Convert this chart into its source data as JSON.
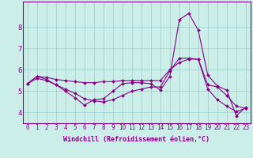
{
  "bg_color": "#cceee8",
  "line_color": "#880088",
  "grid_color": "#99cccc",
  "xlabel": "Windchill (Refroidissement éolien,°C)",
  "xlim": [
    -0.5,
    23.5
  ],
  "ylim": [
    3.5,
    9.2
  ],
  "yticks": [
    4,
    5,
    6,
    7,
    8
  ],
  "xticks": [
    0,
    1,
    2,
    3,
    4,
    5,
    6,
    7,
    8,
    9,
    10,
    11,
    12,
    13,
    14,
    15,
    16,
    17,
    18,
    19,
    20,
    21,
    22,
    23
  ],
  "line1_x": [
    0,
    1,
    2,
    3,
    4,
    5,
    6,
    7,
    8,
    9,
    10,
    11,
    12,
    13,
    14,
    15,
    16,
    17,
    18,
    19,
    20,
    21,
    22,
    23
  ],
  "line1_y": [
    5.35,
    5.7,
    5.65,
    5.55,
    5.5,
    5.45,
    5.4,
    5.4,
    5.45,
    5.45,
    5.5,
    5.5,
    5.5,
    5.5,
    5.5,
    6.0,
    6.35,
    6.5,
    6.5,
    5.3,
    5.2,
    4.8,
    4.3,
    4.2
  ],
  "line2_x": [
    0,
    1,
    2,
    3,
    4,
    5,
    6,
    7,
    8,
    9,
    10,
    11,
    12,
    13,
    14,
    15,
    16,
    17,
    18,
    19,
    20,
    21,
    22,
    23
  ],
  "line2_y": [
    5.35,
    5.7,
    5.55,
    5.3,
    5.0,
    4.7,
    4.35,
    4.6,
    4.65,
    5.0,
    5.35,
    5.4,
    5.4,
    5.35,
    5.05,
    5.7,
    8.35,
    8.65,
    7.85,
    5.75,
    5.25,
    5.05,
    3.85,
    4.25
  ],
  "line3_x": [
    0,
    1,
    2,
    3,
    4,
    5,
    6,
    7,
    8,
    9,
    10,
    11,
    12,
    13,
    14,
    15,
    16,
    17,
    18,
    19,
    20,
    21,
    22,
    23
  ],
  "line3_y": [
    5.35,
    5.6,
    5.5,
    5.3,
    5.1,
    4.9,
    4.65,
    4.55,
    4.5,
    4.6,
    4.8,
    5.0,
    5.1,
    5.2,
    5.2,
    5.95,
    6.55,
    6.55,
    6.5,
    5.1,
    4.6,
    4.3,
    4.05,
    4.2
  ],
  "marker": "D",
  "markersize": 2.0,
  "linewidth": 0.8,
  "xlabel_fontsize": 6,
  "tick_fontsize": 5.5
}
